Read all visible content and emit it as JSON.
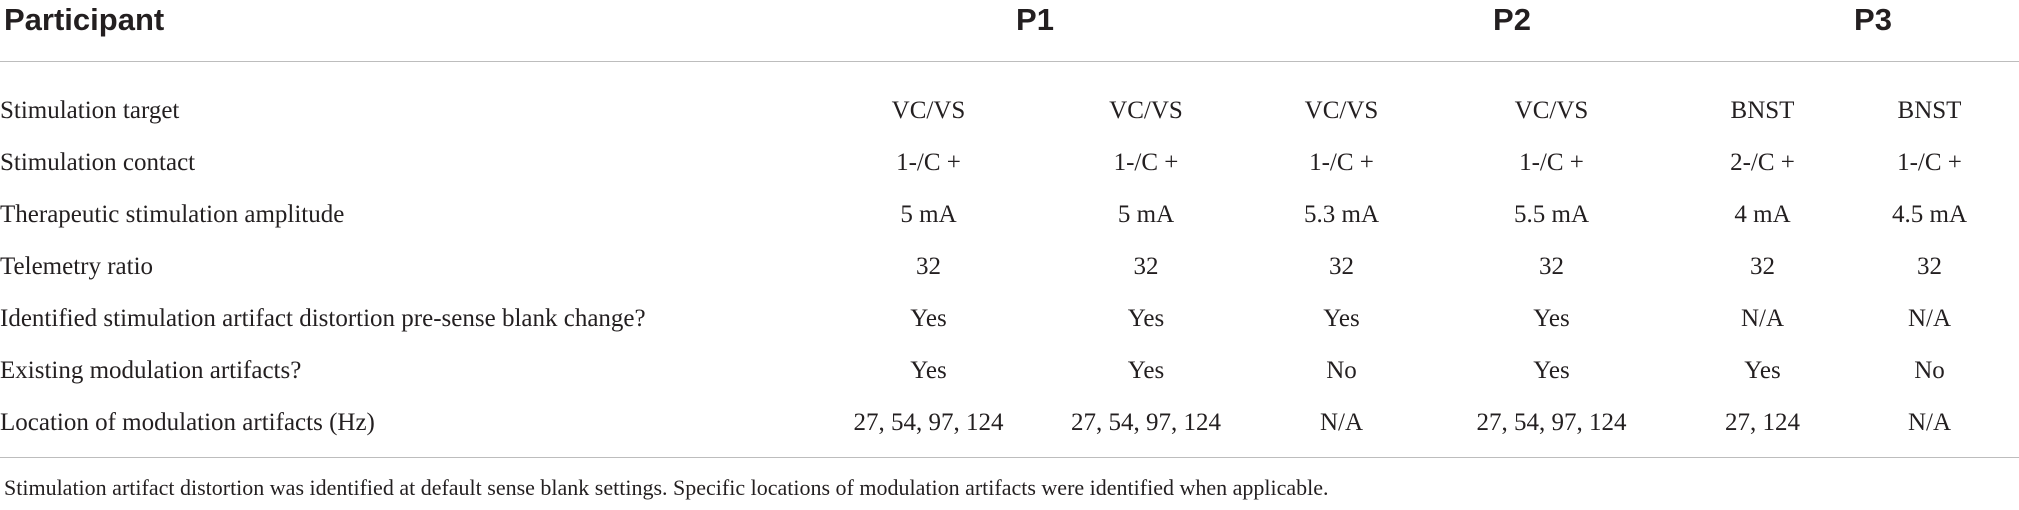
{
  "header": {
    "label": "Participant",
    "groups": [
      "P1",
      "P2",
      "P3"
    ]
  },
  "rows": [
    {
      "label": "Stimulation target",
      "values": [
        "VC/VS",
        "VC/VS",
        "VC/VS",
        "VC/VS",
        "BNST",
        "BNST"
      ]
    },
    {
      "label": "Stimulation contact",
      "values": [
        "1-/C +",
        "1-/C +",
        "1-/C +",
        "1-/C +",
        "2-/C +",
        "1-/C +"
      ]
    },
    {
      "label": "Therapeutic stimulation amplitude",
      "values": [
        "5 mA",
        "5 mA",
        "5.3 mA",
        "5.5 mA",
        "4 mA",
        "4.5 mA"
      ]
    },
    {
      "label": "Telemetry ratio",
      "values": [
        "32",
        "32",
        "32",
        "32",
        "32",
        "32"
      ]
    },
    {
      "label": "Identified stimulation artifact distortion pre-sense blank change?",
      "values": [
        "Yes",
        "Yes",
        "Yes",
        "Yes",
        "N/A",
        "N/A"
      ]
    },
    {
      "label": "Existing modulation artifacts?",
      "values": [
        "Yes",
        "Yes",
        "No",
        "Yes",
        "Yes",
        "No"
      ]
    },
    {
      "label": "Location of modulation artifacts (Hz)",
      "values": [
        "27, 54, 97, 124",
        "27, 54, 97, 124",
        "N/A",
        "27, 54, 97, 124",
        "27, 124",
        "N/A"
      ]
    }
  ],
  "footnote": "Stimulation artifact distortion was identified at default sense blank settings. Specific locations of modulation artifacts were identified when applicable."
}
